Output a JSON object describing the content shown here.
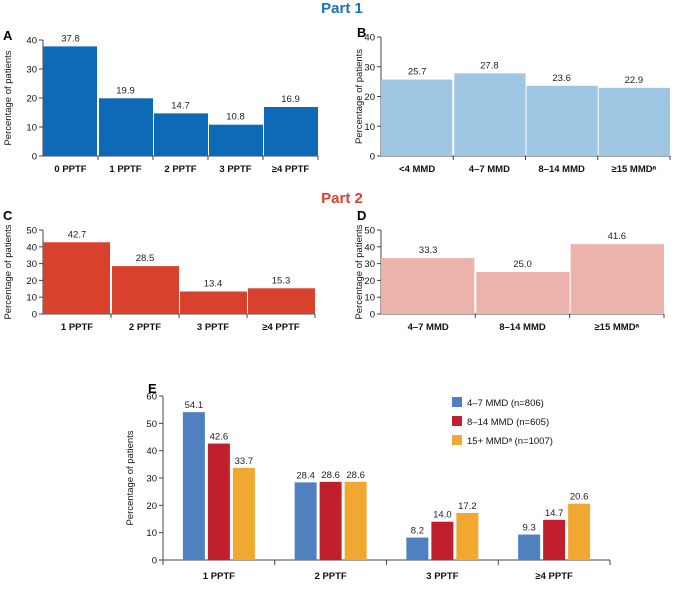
{
  "parts": {
    "part1_title": "Part 1",
    "part1_color": "#1a72bb",
    "part2_title": "Part 2",
    "part2_color": "#d9412f"
  },
  "chart_data": [
    {
      "id": "A",
      "type": "bar",
      "panel_label": "A",
      "ylabel": "Percentage of patients",
      "ylim": [
        0,
        40
      ],
      "yticks": [
        0,
        10,
        20,
        30,
        40
      ],
      "categories": [
        "0 PPTF",
        "1 PPTF",
        "2 PPTF",
        "3 PPTF",
        "≥4 PPTF"
      ],
      "values": [
        37.8,
        19.9,
        14.7,
        10.8,
        16.9
      ],
      "labels": [
        "37.8",
        "19.9",
        "14.7",
        "10.8",
        "16.9"
      ],
      "color": "#0e6ab7"
    },
    {
      "id": "B",
      "type": "bar",
      "panel_label": "B",
      "ylabel": "Percentage of patients",
      "ylim": [
        0,
        40
      ],
      "yticks": [
        0,
        10,
        20,
        30,
        40
      ],
      "categories": [
        "<4 MMD",
        "4–7 MMD",
        "8–14 MMD",
        "≥15 MMDᵃ"
      ],
      "values": [
        25.7,
        27.8,
        23.6,
        22.9
      ],
      "labels": [
        "25.7",
        "27.8",
        "23.6",
        "22.9"
      ],
      "color": "#9fc7e4"
    },
    {
      "id": "C",
      "type": "bar",
      "panel_label": "C",
      "ylabel": "Percentage of patients",
      "ylim": [
        0,
        50
      ],
      "yticks": [
        0,
        10,
        20,
        30,
        40,
        50
      ],
      "categories": [
        "1 PPTF",
        "2 PPTF",
        "3 PPTF",
        "≥4 PPTF"
      ],
      "values": [
        42.7,
        28.5,
        13.4,
        15.3
      ],
      "labels": [
        "42.7",
        "28.5",
        "13.4",
        "15.3"
      ],
      "color": "#d9412f"
    },
    {
      "id": "D",
      "type": "bar",
      "panel_label": "D",
      "ylabel": "Percentage of patients",
      "ylim": [
        0,
        50
      ],
      "yticks": [
        0,
        10,
        20,
        30,
        40,
        50
      ],
      "categories": [
        "4–7 MMD",
        "8–14 MMD",
        "≥15 MMDᵃ"
      ],
      "values": [
        33.3,
        25.0,
        41.6
      ],
      "labels": [
        "33.3",
        "25.0",
        "41.6"
      ],
      "color": "#ecb3ad"
    },
    {
      "id": "E",
      "type": "bar",
      "panel_label": "E",
      "ylabel": "Percentage of patients",
      "ylim": [
        0,
        60
      ],
      "yticks": [
        0,
        10,
        20,
        30,
        40,
        50,
        60
      ],
      "categories": [
        "1 PPTF",
        "2 PPTF",
        "3 PPTF",
        "≥4 PPTF"
      ],
      "series": [
        {
          "name": "4–7 MMD (n=806)",
          "color": "#4f81c0",
          "values": [
            54.1,
            28.4,
            8.2,
            9.3
          ],
          "labels": [
            "54.1",
            "28.4",
            "8.2",
            "9.3"
          ]
        },
        {
          "name": "8–14 MMD (n=605)",
          "color": "#c0202e",
          "values": [
            42.6,
            28.6,
            14.0,
            14.7
          ],
          "labels": [
            "42.6",
            "28.6",
            "14.0",
            "14.7"
          ]
        },
        {
          "name": "15+ MMDᵃ (n=1007)",
          "color": "#f0a830",
          "values": [
            33.7,
            28.6,
            17.2,
            20.6
          ],
          "labels": [
            "33.7",
            "28.6",
            "17.2",
            "20.6"
          ]
        }
      ],
      "legend": "top-right"
    }
  ]
}
